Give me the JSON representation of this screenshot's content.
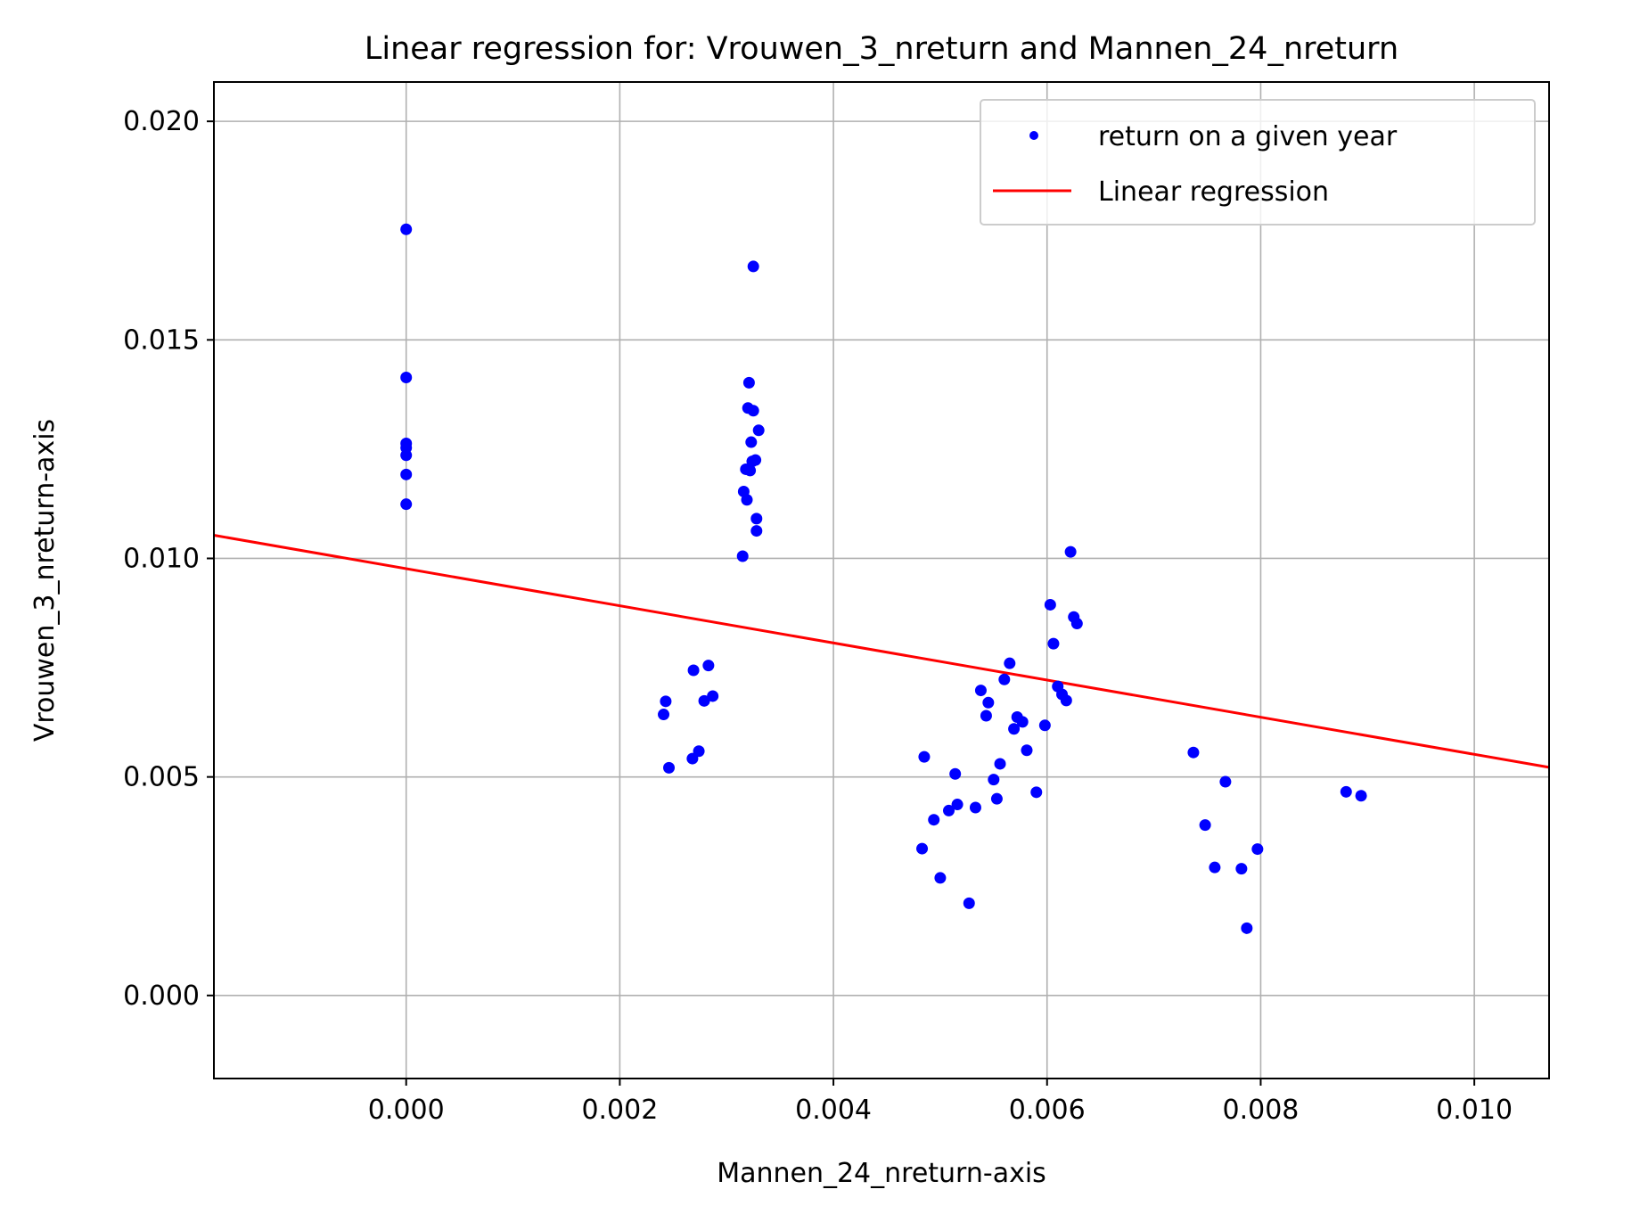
{
  "chart_data": {
    "type": "scatter",
    "title": "Linear regression for: Vrouwen_3_nreturn and Mannen_24_nreturn",
    "xlabel": "Mannen_24_nreturn-axis",
    "ylabel": "Vrouwen_3_nreturn-axis",
    "xlim": [
      -0.0018,
      0.0107
    ],
    "ylim": [
      -0.0019,
      0.0209
    ],
    "x_ticks": [
      "0.000",
      "0.002",
      "0.004",
      "0.006",
      "0.008",
      "0.010"
    ],
    "x_tick_values": [
      0.0,
      0.002,
      0.004,
      0.006,
      0.008,
      0.01
    ],
    "y_ticks": [
      "0.000",
      "0.005",
      "0.010",
      "0.015",
      "0.020"
    ],
    "y_tick_values": [
      0.0,
      0.005,
      0.01,
      0.015,
      0.02
    ],
    "grid": true,
    "legend_position": "top-right",
    "series": [
      {
        "name": "return on a given year",
        "kind": "scatter",
        "color": "#0000ff",
        "points": [
          [
            0.0,
            0.01753
          ],
          [
            0.0,
            0.01414
          ],
          [
            0.0,
            0.01263
          ],
          [
            0.0,
            0.01253
          ],
          [
            0.0,
            0.01236
          ],
          [
            0.0,
            0.01192
          ],
          [
            0.0,
            0.01124
          ],
          [
            0.00325,
            0.01668
          ],
          [
            0.00321,
            0.01402
          ],
          [
            0.0032,
            0.01344
          ],
          [
            0.00325,
            0.01338
          ],
          [
            0.0033,
            0.01293
          ],
          [
            0.00323,
            0.01266
          ],
          [
            0.00327,
            0.01225
          ],
          [
            0.00324,
            0.01222
          ],
          [
            0.00318,
            0.01204
          ],
          [
            0.00322,
            0.01201
          ],
          [
            0.00316,
            0.01153
          ],
          [
            0.00319,
            0.01134
          ],
          [
            0.00328,
            0.01091
          ],
          [
            0.00328,
            0.01063
          ],
          [
            0.00315,
            0.01005
          ],
          [
            0.00283,
            0.00755
          ],
          [
            0.00269,
            0.00744
          ],
          [
            0.00287,
            0.00685
          ],
          [
            0.00279,
            0.00674
          ],
          [
            0.00243,
            0.00673
          ],
          [
            0.00241,
            0.00643
          ],
          [
            0.00274,
            0.00559
          ],
          [
            0.00268,
            0.00542
          ],
          [
            0.00246,
            0.00521
          ],
          [
            0.00622,
            0.01015
          ],
          [
            0.00603,
            0.00894
          ],
          [
            0.00625,
            0.00866
          ],
          [
            0.00628,
            0.00851
          ],
          [
            0.00606,
            0.00805
          ],
          [
            0.00565,
            0.0076
          ],
          [
            0.0056,
            0.00723
          ],
          [
            0.0061,
            0.00707
          ],
          [
            0.00538,
            0.00698
          ],
          [
            0.00614,
            0.00689
          ],
          [
            0.00618,
            0.00675
          ],
          [
            0.00545,
            0.0067
          ],
          [
            0.00543,
            0.0064
          ],
          [
            0.00572,
            0.00637
          ],
          [
            0.00577,
            0.00626
          ],
          [
            0.00598,
            0.00618
          ],
          [
            0.00569,
            0.0061
          ],
          [
            0.00581,
            0.00561
          ],
          [
            0.00556,
            0.0053
          ],
          [
            0.00485,
            0.00546
          ],
          [
            0.00514,
            0.00507
          ],
          [
            0.0055,
            0.00494
          ],
          [
            0.0059,
            0.00465
          ],
          [
            0.00553,
            0.0045
          ],
          [
            0.00516,
            0.00437
          ],
          [
            0.00508,
            0.00423
          ],
          [
            0.00533,
            0.0043
          ],
          [
            0.00494,
            0.00402
          ],
          [
            0.00483,
            0.00336
          ],
          [
            0.005,
            0.00269
          ],
          [
            0.00527,
            0.00211
          ],
          [
            0.00737,
            0.00556
          ],
          [
            0.00767,
            0.00489
          ],
          [
            0.00748,
            0.0039
          ],
          [
            0.00797,
            0.00335
          ],
          [
            0.00757,
            0.00293
          ],
          [
            0.00782,
            0.0029
          ],
          [
            0.00787,
            0.00154
          ],
          [
            0.0088,
            0.00466
          ],
          [
            0.00894,
            0.00457
          ]
        ]
      },
      {
        "name": "Linear regression",
        "kind": "line",
        "color": "#ff0000",
        "points": [
          [
            -0.0018,
            0.01053
          ],
          [
            0.0107,
            0.00522
          ]
        ]
      }
    ]
  }
}
